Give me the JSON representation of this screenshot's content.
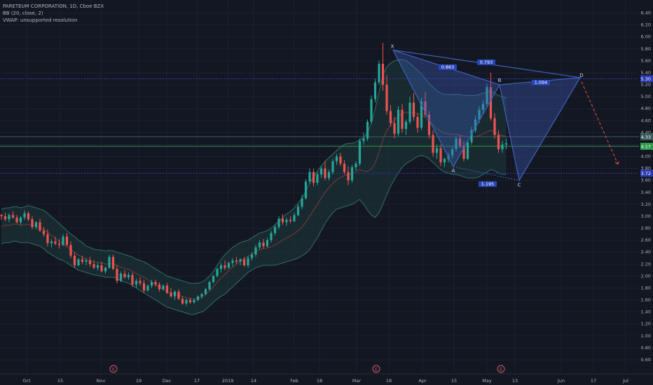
{
  "legend": {
    "symbol": "PARETEUM CORPORATION, 1D, Cboe BZX",
    "bb": "BB (20, close, 2)",
    "vwap": "VWAP: unsupported resolution"
  },
  "colors": {
    "background": "#131722",
    "up": "#26a69a",
    "down": "#ef5350",
    "pattern": "#3f5fbf",
    "hline_blue": "#2e3bb0",
    "hline_green": "#2f9a4a",
    "hline_grey": "#3a5a5a",
    "bb_fill": "#1e3b3a",
    "bb_band": "#2f6f63",
    "bb_basis": "#7a3a3a"
  },
  "chart_data": {
    "type": "candlestick",
    "ylim": [
      0.6,
      6.5
    ],
    "y_ticks": [
      "6.40",
      "6.20",
      "6.00",
      "5.80",
      "5.60",
      "5.40",
      "5.20",
      "5.00",
      "4.80",
      "4.60",
      "4.40",
      "4.20",
      "4.00",
      "3.80",
      "3.60",
      "3.40",
      "3.20",
      "3.00",
      "2.80",
      "2.60",
      "2.40",
      "2.20",
      "2.00",
      "1.80",
      "1.60",
      "1.40",
      "1.20",
      "1.00",
      "0.80",
      "0.60"
    ],
    "x_ticks": [
      "Oct",
      "15",
      "Nov",
      "19",
      "Dec",
      "17",
      "2019",
      "14",
      "Feb",
      "18",
      "Mar",
      "18",
      "Apr",
      "15",
      "May",
      "13",
      "Jun",
      "17",
      "Jul"
    ],
    "price_labels": [
      {
        "text": "5.30",
        "y": 5.3,
        "color": "#2e3bb0"
      },
      {
        "text": "4.33",
        "y": 4.33,
        "color": "#3a5a5a"
      },
      {
        "text": "4.17",
        "y": 4.17,
        "color": "#2f9a4a"
      },
      {
        "text": "3.72",
        "y": 3.72,
        "color": "#2e3bb0"
      }
    ],
    "pattern": {
      "points": [
        {
          "label": "X",
          "y": 5.78
        },
        {
          "label": "A",
          "y": 3.83
        },
        {
          "label": "B",
          "y": 5.2
        },
        {
          "label": "C",
          "y": 3.6
        },
        {
          "label": "D",
          "y": 5.32
        }
      ],
      "ratios": [
        "0.863",
        "0.793",
        "1.094",
        "1.195"
      ],
      "projection_end": 3.87
    },
    "earnings_markers": [
      "E",
      "E",
      "E"
    ],
    "candles": [
      [
        3.02,
        3.04,
        2.94,
        3.0
      ],
      [
        3.0,
        3.06,
        2.92,
        2.95
      ],
      [
        2.95,
        3.05,
        2.9,
        3.02
      ],
      [
        3.02,
        3.08,
        2.96,
        2.98
      ],
      [
        2.98,
        3.02,
        2.88,
        2.9
      ],
      [
        2.9,
        3.0,
        2.86,
        2.98
      ],
      [
        2.98,
        3.1,
        2.94,
        3.05
      ],
      [
        3.05,
        3.08,
        2.92,
        2.95
      ],
      [
        2.95,
        3.0,
        2.78,
        2.82
      ],
      [
        2.82,
        2.92,
        2.78,
        2.9
      ],
      [
        2.9,
        2.96,
        2.74,
        2.76
      ],
      [
        2.76,
        2.82,
        2.66,
        2.7
      ],
      [
        2.7,
        2.78,
        2.5,
        2.55
      ],
      [
        2.55,
        2.62,
        2.48,
        2.58
      ],
      [
        2.58,
        2.66,
        2.52,
        2.54
      ],
      [
        2.54,
        2.62,
        2.46,
        2.52
      ],
      [
        2.52,
        2.7,
        2.5,
        2.66
      ],
      [
        2.66,
        2.72,
        2.5,
        2.52
      ],
      [
        2.52,
        2.58,
        2.3,
        2.34
      ],
      [
        2.34,
        2.4,
        2.14,
        2.18
      ],
      [
        2.18,
        2.3,
        2.16,
        2.28
      ],
      [
        2.28,
        2.34,
        2.2,
        2.24
      ],
      [
        2.24,
        2.3,
        2.18,
        2.26
      ],
      [
        2.26,
        2.32,
        2.16,
        2.2
      ],
      [
        2.2,
        2.26,
        2.12,
        2.14
      ],
      [
        2.14,
        2.22,
        2.1,
        2.18
      ],
      [
        2.18,
        2.24,
        2.06,
        2.08
      ],
      [
        2.08,
        2.16,
        2.04,
        2.14
      ],
      [
        2.14,
        2.36,
        2.12,
        2.32
      ],
      [
        2.32,
        2.36,
        2.1,
        2.12
      ],
      [
        2.12,
        2.18,
        1.88,
        1.92
      ],
      [
        1.92,
        2.08,
        1.9,
        2.04
      ],
      [
        2.04,
        2.1,
        1.96,
        1.98
      ],
      [
        1.98,
        2.06,
        1.94,
        2.02
      ],
      [
        2.02,
        2.06,
        1.82,
        1.86
      ],
      [
        1.86,
        1.96,
        1.8,
        1.92
      ],
      [
        1.92,
        1.98,
        1.84,
        1.88
      ],
      [
        1.88,
        1.94,
        1.72,
        1.76
      ],
      [
        1.76,
        1.86,
        1.74,
        1.84
      ],
      [
        1.84,
        1.94,
        1.8,
        1.9
      ],
      [
        1.9,
        1.94,
        1.82,
        1.86
      ],
      [
        1.86,
        1.9,
        1.74,
        1.78
      ],
      [
        1.78,
        1.86,
        1.76,
        1.84
      ],
      [
        1.84,
        1.88,
        1.7,
        1.72
      ],
      [
        1.72,
        1.8,
        1.64,
        1.66
      ],
      [
        1.66,
        1.76,
        1.6,
        1.74
      ],
      [
        1.74,
        1.78,
        1.6,
        1.62
      ],
      [
        1.62,
        1.66,
        1.52,
        1.54
      ],
      [
        1.54,
        1.62,
        1.5,
        1.6
      ],
      [
        1.6,
        1.64,
        1.54,
        1.56
      ],
      [
        1.56,
        1.62,
        1.54,
        1.6
      ],
      [
        1.6,
        1.68,
        1.58,
        1.66
      ],
      [
        1.66,
        1.72,
        1.62,
        1.7
      ],
      [
        1.7,
        1.8,
        1.68,
        1.78
      ],
      [
        1.78,
        1.92,
        1.76,
        1.9
      ],
      [
        1.9,
        2.02,
        1.88,
        2.0
      ],
      [
        2.0,
        2.14,
        1.98,
        2.12
      ],
      [
        2.12,
        2.22,
        2.06,
        2.18
      ],
      [
        2.18,
        2.26,
        2.1,
        2.14
      ],
      [
        2.14,
        2.24,
        2.12,
        2.22
      ],
      [
        2.22,
        2.3,
        2.16,
        2.26
      ],
      [
        2.26,
        2.32,
        2.2,
        2.24
      ],
      [
        2.24,
        2.3,
        2.18,
        2.28
      ],
      [
        2.28,
        2.32,
        2.16,
        2.18
      ],
      [
        2.18,
        2.34,
        2.14,
        2.3
      ],
      [
        2.3,
        2.4,
        2.26,
        2.36
      ],
      [
        2.36,
        2.52,
        2.32,
        2.48
      ],
      [
        2.48,
        2.6,
        2.44,
        2.56
      ],
      [
        2.56,
        2.62,
        2.46,
        2.5
      ],
      [
        2.5,
        2.64,
        2.48,
        2.6
      ],
      [
        2.6,
        2.76,
        2.56,
        2.72
      ],
      [
        2.72,
        2.86,
        2.68,
        2.82
      ],
      [
        2.82,
        3.0,
        2.78,
        2.96
      ],
      [
        2.96,
        3.04,
        2.86,
        2.9
      ],
      [
        2.9,
        2.98,
        2.84,
        2.94
      ],
      [
        2.94,
        3.0,
        2.88,
        2.92
      ],
      [
        2.92,
        3.06,
        2.9,
        3.02
      ],
      [
        3.02,
        3.2,
        3.0,
        3.16
      ],
      [
        3.16,
        3.36,
        3.12,
        3.3
      ],
      [
        3.3,
        3.62,
        3.28,
        3.58
      ],
      [
        3.58,
        3.8,
        3.54,
        3.74
      ],
      [
        3.74,
        3.8,
        3.5,
        3.56
      ],
      [
        3.56,
        3.74,
        3.52,
        3.7
      ],
      [
        3.7,
        3.84,
        3.64,
        3.8
      ],
      [
        3.8,
        3.92,
        3.6,
        3.64
      ],
      [
        3.64,
        3.78,
        3.6,
        3.74
      ],
      [
        3.74,
        3.96,
        3.7,
        3.92
      ],
      [
        3.92,
        4.04,
        3.86,
        4.0
      ],
      [
        4.0,
        4.06,
        3.84,
        3.88
      ],
      [
        3.88,
        3.94,
        3.7,
        3.74
      ],
      [
        3.74,
        3.84,
        3.52,
        3.6
      ],
      [
        3.6,
        3.86,
        3.56,
        3.82
      ],
      [
        3.82,
        3.92,
        3.76,
        3.88
      ],
      [
        3.88,
        4.3,
        3.84,
        4.26
      ],
      [
        4.26,
        4.4,
        4.2,
        4.3
      ],
      [
        4.3,
        4.62,
        4.26,
        4.58
      ],
      [
        4.58,
        5.02,
        4.54,
        4.96
      ],
      [
        4.96,
        5.3,
        4.9,
        5.24
      ],
      [
        5.24,
        5.6,
        5.2,
        5.55
      ],
      [
        5.55,
        5.9,
        5.1,
        5.2
      ],
      [
        5.2,
        5.36,
        4.7,
        4.76
      ],
      [
        4.76,
        4.86,
        4.5,
        4.56
      ],
      [
        4.56,
        4.66,
        4.3,
        4.38
      ],
      [
        4.38,
        4.84,
        4.34,
        4.78
      ],
      [
        4.78,
        4.88,
        4.4,
        4.46
      ],
      [
        4.46,
        4.62,
        4.36,
        4.58
      ],
      [
        4.58,
        5.0,
        4.54,
        4.9
      ],
      [
        4.9,
        5.06,
        4.6,
        4.66
      ],
      [
        4.66,
        4.72,
        4.4,
        4.48
      ],
      [
        4.48,
        4.98,
        4.44,
        4.92
      ],
      [
        4.92,
        5.08,
        4.66,
        4.7
      ],
      [
        4.7,
        4.76,
        4.3,
        4.36
      ],
      [
        4.36,
        4.44,
        4.0,
        4.06
      ],
      [
        4.06,
        4.2,
        3.96,
        4.14
      ],
      [
        4.14,
        4.2,
        3.84,
        3.9
      ],
      [
        3.9,
        3.98,
        3.82,
        3.96
      ],
      [
        3.96,
        4.06,
        3.9,
        4.02
      ],
      [
        4.02,
        4.16,
        3.96,
        4.12
      ],
      [
        4.12,
        4.34,
        4.08,
        4.3
      ],
      [
        4.3,
        4.36,
        4.14,
        4.18
      ],
      [
        4.18,
        4.26,
        3.92,
        3.96
      ],
      [
        3.96,
        4.28,
        3.94,
        4.24
      ],
      [
        4.24,
        4.5,
        4.2,
        4.44
      ],
      [
        4.44,
        4.68,
        4.4,
        4.62
      ],
      [
        4.62,
        4.84,
        4.56,
        4.78
      ],
      [
        4.78,
        4.94,
        4.7,
        4.88
      ],
      [
        4.88,
        5.22,
        4.84,
        5.16
      ],
      [
        5.16,
        5.4,
        4.6,
        4.64
      ],
      [
        4.64,
        4.72,
        4.3,
        4.36
      ],
      [
        4.36,
        4.44,
        4.06,
        4.12
      ],
      [
        4.12,
        4.26,
        4.06,
        4.2
      ],
      [
        4.2,
        4.3,
        4.12,
        4.22
      ]
    ],
    "bb": {
      "upper": [
        3.12,
        3.14,
        3.14,
        3.16,
        3.16,
        3.14,
        3.16,
        3.18,
        3.16,
        3.14,
        3.12,
        3.1,
        3.05,
        2.99,
        2.94,
        2.88,
        2.82,
        2.76,
        2.7,
        2.66,
        2.6,
        2.56,
        2.5,
        2.48,
        2.45,
        2.44,
        2.43,
        2.42,
        2.43,
        2.42,
        2.4,
        2.38,
        2.36,
        2.34,
        2.32,
        2.28,
        2.26,
        2.24,
        2.2,
        2.16,
        2.12,
        2.08,
        2.04,
        2.0,
        1.98,
        1.96,
        1.94,
        1.92,
        1.9,
        1.88,
        1.88,
        1.88,
        1.9,
        1.94,
        2.0,
        2.08,
        2.18,
        2.28,
        2.36,
        2.42,
        2.48,
        2.52,
        2.56,
        2.58,
        2.6,
        2.64,
        2.68,
        2.72,
        2.74,
        2.76,
        2.8,
        2.86,
        2.92,
        2.98,
        3.04,
        3.08,
        3.14,
        3.22,
        3.3,
        3.42,
        3.56,
        3.66,
        3.76,
        3.84,
        3.92,
        3.98,
        4.04,
        4.1,
        4.16,
        4.2,
        4.22,
        4.22,
        4.24,
        4.28,
        4.32,
        4.4,
        4.56,
        4.8,
        5.08,
        5.36,
        5.5,
        5.56,
        5.6,
        5.62,
        5.62,
        5.6,
        5.56,
        5.5,
        5.44,
        5.38,
        5.3,
        5.22,
        5.16,
        5.1,
        5.06,
        5.04,
        5.04,
        5.04,
        5.04,
        5.04,
        5.02,
        5.02,
        5.02,
        5.02,
        5.04,
        5.06,
        5.08,
        5.1,
        5.06,
        5.02,
        5.0,
        4.98
      ],
      "lower": [
        2.54,
        2.56,
        2.56,
        2.58,
        2.58,
        2.56,
        2.56,
        2.56,
        2.54,
        2.52,
        2.5,
        2.46,
        2.4,
        2.36,
        2.32,
        2.28,
        2.26,
        2.22,
        2.18,
        2.14,
        2.1,
        2.08,
        2.06,
        2.04,
        2.02,
        2.01,
        2.0,
        1.98,
        1.98,
        1.98,
        1.96,
        1.92,
        1.9,
        1.88,
        1.84,
        1.8,
        1.76,
        1.72,
        1.68,
        1.64,
        1.6,
        1.56,
        1.52,
        1.48,
        1.46,
        1.44,
        1.42,
        1.4,
        1.38,
        1.36,
        1.36,
        1.38,
        1.4,
        1.44,
        1.5,
        1.56,
        1.62,
        1.66,
        1.7,
        1.76,
        1.82,
        1.88,
        1.94,
        2.0,
        2.06,
        2.1,
        2.14,
        2.16,
        2.18,
        2.18,
        2.18,
        2.18,
        2.2,
        2.22,
        2.24,
        2.26,
        2.28,
        2.3,
        2.34,
        2.38,
        2.44,
        2.54,
        2.64,
        2.76,
        2.88,
        2.98,
        3.06,
        3.12,
        3.14,
        3.16,
        3.18,
        3.2,
        3.24,
        3.28,
        3.2,
        3.1,
        3.02,
        2.98,
        3.06,
        3.2,
        3.36,
        3.5,
        3.62,
        3.72,
        3.82,
        3.88,
        3.92,
        3.96,
        4.0,
        4.02,
        4.0,
        3.96,
        3.9,
        3.84,
        3.78,
        3.74,
        3.72,
        3.7,
        3.7,
        3.68,
        3.66,
        3.64,
        3.64,
        3.64,
        3.66,
        3.7,
        3.74,
        3.78,
        3.76,
        3.72,
        3.7,
        3.7
      ],
      "basis": [
        2.83,
        2.85,
        2.85,
        2.87,
        2.87,
        2.85,
        2.86,
        2.87,
        2.85,
        2.83,
        2.81,
        2.78,
        2.73,
        2.68,
        2.63,
        2.58,
        2.54,
        2.49,
        2.44,
        2.4,
        2.35,
        2.32,
        2.28,
        2.26,
        2.24,
        2.23,
        2.22,
        2.2,
        2.21,
        2.2,
        2.18,
        2.15,
        2.13,
        2.11,
        2.08,
        2.04,
        2.01,
        1.98,
        1.94,
        1.9,
        1.86,
        1.82,
        1.78,
        1.74,
        1.72,
        1.7,
        1.68,
        1.66,
        1.64,
        1.62,
        1.62,
        1.63,
        1.65,
        1.69,
        1.75,
        1.82,
        1.9,
        1.97,
        2.03,
        2.09,
        2.15,
        2.2,
        2.25,
        2.29,
        2.33,
        2.37,
        2.41,
        2.44,
        2.46,
        2.47,
        2.49,
        2.52,
        2.56,
        2.6,
        2.64,
        2.67,
        2.71,
        2.76,
        2.82,
        2.9,
        3.0,
        3.1,
        3.2,
        3.3,
        3.4,
        3.48,
        3.55,
        3.61,
        3.65,
        3.68,
        3.7,
        3.71,
        3.74,
        3.78,
        3.76,
        3.75,
        3.79,
        3.89,
        4.07,
        4.28,
        4.43,
        4.53,
        4.61,
        4.67,
        4.72,
        4.74,
        4.74,
        4.73,
        4.72,
        4.7,
        4.65,
        4.59,
        4.53,
        4.47,
        4.42,
        4.39,
        4.38,
        4.37,
        4.37,
        4.36,
        4.34,
        4.33,
        4.33,
        4.33,
        4.35,
        4.38,
        4.41,
        4.44,
        4.41,
        4.37,
        4.35,
        4.34
      ]
    }
  }
}
